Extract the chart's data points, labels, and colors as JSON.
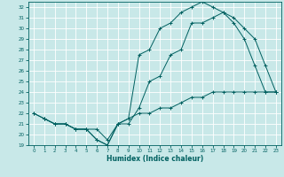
{
  "title": "",
  "xlabel": "Humidex (Indice chaleur)",
  "ylabel": "",
  "bg_color": "#c8e8e8",
  "grid_color": "#b0d8d8",
  "line_color": "#006060",
  "ylim": [
    19,
    32.5
  ],
  "xlim": [
    -0.5,
    23.5
  ],
  "yticks": [
    19,
    20,
    21,
    22,
    23,
    24,
    25,
    26,
    27,
    28,
    29,
    30,
    31,
    32
  ],
  "xticks": [
    0,
    1,
    2,
    3,
    4,
    5,
    6,
    7,
    8,
    9,
    10,
    11,
    12,
    13,
    14,
    15,
    16,
    17,
    18,
    19,
    20,
    21,
    22,
    23
  ],
  "line1_x": [
    0,
    1,
    2,
    3,
    4,
    5,
    6,
    7,
    8,
    9,
    10,
    11,
    12,
    13,
    14,
    15,
    16,
    17,
    18,
    19,
    20,
    21,
    22,
    23
  ],
  "line1_y": [
    22.0,
    21.5,
    21.0,
    21.0,
    20.5,
    20.5,
    19.5,
    19.0,
    21.0,
    21.5,
    22.0,
    22.0,
    22.5,
    22.5,
    23.0,
    23.5,
    23.5,
    24.0,
    24.0,
    24.0,
    24.0,
    24.0,
    24.0,
    24.0
  ],
  "line2_x": [
    1,
    2,
    3,
    4,
    5,
    6,
    7,
    8,
    9,
    10,
    11,
    12,
    13,
    14,
    15,
    16,
    17,
    18,
    19,
    20,
    21,
    22,
    23
  ],
  "line2_y": [
    21.5,
    21.0,
    21.0,
    20.5,
    20.5,
    20.5,
    19.5,
    21.0,
    21.0,
    22.5,
    25.0,
    25.5,
    27.5,
    28.0,
    30.5,
    30.5,
    31.0,
    31.5,
    31.0,
    30.0,
    29.0,
    26.5,
    24.0
  ],
  "line3_x": [
    0,
    1,
    2,
    3,
    4,
    5,
    6,
    7,
    8,
    9,
    10,
    11,
    12,
    13,
    14,
    15,
    16,
    17,
    18,
    19,
    20,
    21,
    22,
    23
  ],
  "line3_y": [
    22.0,
    21.5,
    21.0,
    21.0,
    20.5,
    20.5,
    19.5,
    19.0,
    21.0,
    21.5,
    27.5,
    28.0,
    30.0,
    30.5,
    31.5,
    32.0,
    32.5,
    32.0,
    31.5,
    30.5,
    29.0,
    26.5,
    24.0,
    24.0
  ]
}
